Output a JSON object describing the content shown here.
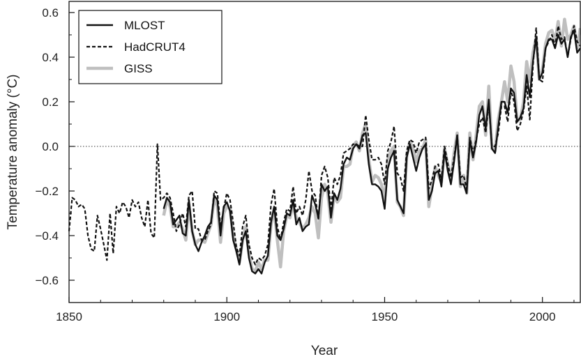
{
  "chart_data": {
    "type": "line",
    "xlabel": "Year",
    "ylabel": "Temperature anomaly (°C)",
    "xlim": [
      1850,
      2012
    ],
    "ylim": [
      -0.7,
      0.65
    ],
    "x_ticks": [
      1850,
      1900,
      1950,
      2000
    ],
    "y_ticks": [
      -0.6,
      -0.4,
      -0.2,
      0.0,
      0.2,
      0.4,
      0.6
    ],
    "y_tick_labels": [
      "−0.6",
      "−0.4",
      "−0.2",
      "0.0",
      "0.2",
      "0.4",
      "0.6"
    ],
    "reference_line": {
      "y": 0.0,
      "style": "dotted"
    },
    "legend_position": "top-left",
    "series": [
      {
        "name": "MLOST",
        "style": "solid",
        "color": "#111111",
        "x": [
          1880,
          1881,
          1882,
          1883,
          1884,
          1885,
          1886,
          1887,
          1888,
          1889,
          1890,
          1891,
          1892,
          1893,
          1894,
          1895,
          1896,
          1897,
          1898,
          1899,
          1900,
          1901,
          1902,
          1903,
          1904,
          1905,
          1906,
          1907,
          1908,
          1909,
          1910,
          1911,
          1912,
          1913,
          1914,
          1915,
          1916,
          1917,
          1918,
          1919,
          1920,
          1921,
          1922,
          1923,
          1924,
          1925,
          1926,
          1927,
          1928,
          1929,
          1930,
          1931,
          1932,
          1933,
          1934,
          1935,
          1936,
          1937,
          1938,
          1939,
          1940,
          1941,
          1942,
          1943,
          1944,
          1945,
          1946,
          1947,
          1948,
          1949,
          1950,
          1951,
          1952,
          1953,
          1954,
          1955,
          1956,
          1957,
          1958,
          1959,
          1960,
          1961,
          1962,
          1963,
          1964,
          1965,
          1966,
          1967,
          1968,
          1969,
          1970,
          1971,
          1972,
          1973,
          1974,
          1975,
          1976,
          1977,
          1978,
          1979,
          1980,
          1981,
          1982,
          1983,
          1984,
          1985,
          1986,
          1987,
          1988,
          1989,
          1990,
          1991,
          1992,
          1993,
          1994,
          1995,
          1996,
          1997,
          1998,
          1999,
          2000,
          2001,
          2002,
          2003,
          2004,
          2005,
          2006,
          2007,
          2008,
          2009,
          2010,
          2011,
          2012
        ],
        "y": [
          -0.28,
          -0.23,
          -0.25,
          -0.35,
          -0.33,
          -0.31,
          -0.39,
          -0.4,
          -0.24,
          -0.38,
          -0.44,
          -0.47,
          -0.43,
          -0.4,
          -0.36,
          -0.34,
          -0.22,
          -0.24,
          -0.4,
          -0.27,
          -0.25,
          -0.29,
          -0.42,
          -0.47,
          -0.53,
          -0.42,
          -0.38,
          -0.5,
          -0.56,
          -0.57,
          -0.55,
          -0.57,
          -0.52,
          -0.49,
          -0.34,
          -0.27,
          -0.4,
          -0.42,
          -0.37,
          -0.3,
          -0.31,
          -0.24,
          -0.35,
          -0.32,
          -0.38,
          -0.36,
          -0.35,
          -0.22,
          -0.26,
          -0.32,
          -0.17,
          -0.2,
          -0.18,
          -0.32,
          -0.21,
          -0.24,
          -0.19,
          -0.08,
          -0.05,
          -0.06,
          -0.01,
          0.01,
          -0.01,
          0.05,
          0.06,
          -0.08,
          -0.17,
          -0.17,
          -0.18,
          -0.2,
          -0.28,
          -0.1,
          -0.05,
          -0.02,
          -0.24,
          -0.27,
          -0.3,
          -0.05,
          0.01,
          -0.05,
          -0.11,
          -0.05,
          -0.01,
          0.01,
          -0.24,
          -0.2,
          -0.12,
          -0.11,
          -0.18,
          -0.02,
          -0.11,
          -0.17,
          -0.07,
          0.05,
          -0.17,
          -0.17,
          -0.21,
          0.03,
          -0.05,
          0.02,
          0.14,
          0.18,
          0.08,
          0.21,
          -0.01,
          -0.03,
          0.09,
          0.2,
          0.2,
          0.15,
          0.26,
          0.24,
          0.11,
          0.13,
          0.17,
          0.32,
          0.22,
          0.38,
          0.49,
          0.3,
          0.33,
          0.44,
          0.48,
          0.48,
          0.44,
          0.5,
          0.46,
          0.48,
          0.4,
          0.49,
          0.52,
          0.42,
          0.44
        ]
      },
      {
        "name": "HadCRUT4",
        "style": "dashed",
        "color": "#111111",
        "x": [
          1850,
          1851,
          1852,
          1853,
          1854,
          1855,
          1856,
          1857,
          1858,
          1859,
          1860,
          1861,
          1862,
          1863,
          1864,
          1865,
          1866,
          1867,
          1868,
          1869,
          1870,
          1871,
          1872,
          1873,
          1874,
          1875,
          1876,
          1877,
          1878,
          1879,
          1880,
          1881,
          1882,
          1883,
          1884,
          1885,
          1886,
          1887,
          1888,
          1889,
          1890,
          1891,
          1892,
          1893,
          1894,
          1895,
          1896,
          1897,
          1898,
          1899,
          1900,
          1901,
          1902,
          1903,
          1904,
          1905,
          1906,
          1907,
          1908,
          1909,
          1910,
          1911,
          1912,
          1913,
          1914,
          1915,
          1916,
          1917,
          1918,
          1919,
          1920,
          1921,
          1922,
          1923,
          1924,
          1925,
          1926,
          1927,
          1928,
          1929,
          1930,
          1931,
          1932,
          1933,
          1934,
          1935,
          1936,
          1937,
          1938,
          1939,
          1940,
          1941,
          1942,
          1943,
          1944,
          1945,
          1946,
          1947,
          1948,
          1949,
          1950,
          1951,
          1952,
          1953,
          1954,
          1955,
          1956,
          1957,
          1958,
          1959,
          1960,
          1961,
          1962,
          1963,
          1964,
          1965,
          1966,
          1967,
          1968,
          1969,
          1970,
          1971,
          1972,
          1973,
          1974,
          1975,
          1976,
          1977,
          1978,
          1979,
          1980,
          1981,
          1982,
          1983,
          1984,
          1985,
          1986,
          1987,
          1988,
          1989,
          1990,
          1991,
          1992,
          1993,
          1994,
          1995,
          1996,
          1997,
          1998,
          1999,
          2000,
          2001,
          2002,
          2003,
          2004,
          2005,
          2006,
          2007,
          2008,
          2009,
          2010,
          2011,
          2012
        ],
        "y": [
          -0.38,
          -0.23,
          -0.24,
          -0.27,
          -0.26,
          -0.28,
          -0.4,
          -0.46,
          -0.47,
          -0.31,
          -0.37,
          -0.44,
          -0.51,
          -0.3,
          -0.48,
          -0.27,
          -0.3,
          -0.25,
          -0.27,
          -0.32,
          -0.24,
          -0.27,
          -0.25,
          -0.32,
          -0.36,
          -0.24,
          -0.39,
          -0.41,
          0.01,
          -0.24,
          -0.23,
          -0.21,
          -0.23,
          -0.3,
          -0.38,
          -0.35,
          -0.3,
          -0.36,
          -0.22,
          -0.2,
          -0.37,
          -0.37,
          -0.42,
          -0.42,
          -0.38,
          -0.35,
          -0.2,
          -0.21,
          -0.36,
          -0.28,
          -0.21,
          -0.24,
          -0.34,
          -0.45,
          -0.49,
          -0.36,
          -0.31,
          -0.44,
          -0.5,
          -0.53,
          -0.5,
          -0.51,
          -0.49,
          -0.44,
          -0.26,
          -0.19,
          -0.36,
          -0.42,
          -0.34,
          -0.28,
          -0.29,
          -0.18,
          -0.3,
          -0.27,
          -0.31,
          -0.24,
          -0.11,
          -0.2,
          -0.22,
          -0.33,
          -0.13,
          -0.09,
          -0.14,
          -0.28,
          -0.14,
          -0.17,
          -0.13,
          -0.03,
          -0.02,
          -0.01,
          0.01,
          0.01,
          0.0,
          0.0,
          0.14,
          0.03,
          -0.06,
          -0.06,
          -0.05,
          -0.08,
          -0.17,
          -0.02,
          0.02,
          0.09,
          -0.12,
          -0.14,
          -0.2,
          -0.02,
          0.03,
          0.02,
          -0.03,
          0.02,
          0.03,
          0.04,
          -0.19,
          -0.15,
          -0.09,
          -0.08,
          -0.15,
          0.0,
          -0.08,
          -0.14,
          -0.05,
          0.05,
          -0.14,
          -0.13,
          -0.19,
          0.04,
          -0.03,
          0.03,
          0.1,
          0.13,
          0.06,
          0.19,
          0.0,
          0.0,
          0.06,
          0.18,
          0.18,
          0.11,
          0.25,
          0.2,
          0.07,
          0.1,
          0.16,
          0.27,
          0.12,
          0.36,
          0.53,
          0.3,
          0.29,
          0.44,
          0.47,
          0.5,
          0.45,
          0.54,
          0.48,
          0.49,
          0.4,
          0.48,
          0.54,
          0.47,
          0.45
        ]
      },
      {
        "name": "GISS",
        "style": "solid-thick",
        "color": "#bfbfbf",
        "x": [
          1880,
          1881,
          1882,
          1883,
          1884,
          1885,
          1886,
          1887,
          1888,
          1889,
          1890,
          1891,
          1892,
          1893,
          1894,
          1895,
          1896,
          1897,
          1898,
          1899,
          1900,
          1901,
          1902,
          1903,
          1904,
          1905,
          1906,
          1907,
          1908,
          1909,
          1910,
          1911,
          1912,
          1913,
          1914,
          1915,
          1916,
          1917,
          1918,
          1919,
          1920,
          1921,
          1922,
          1923,
          1924,
          1925,
          1926,
          1927,
          1928,
          1929,
          1930,
          1931,
          1932,
          1933,
          1934,
          1935,
          1936,
          1937,
          1938,
          1939,
          1940,
          1941,
          1942,
          1943,
          1944,
          1945,
          1946,
          1947,
          1948,
          1949,
          1950,
          1951,
          1952,
          1953,
          1954,
          1955,
          1956,
          1957,
          1958,
          1959,
          1960,
          1961,
          1962,
          1963,
          1964,
          1965,
          1966,
          1967,
          1968,
          1969,
          1970,
          1971,
          1972,
          1973,
          1974,
          1975,
          1976,
          1977,
          1978,
          1979,
          1980,
          1981,
          1982,
          1983,
          1984,
          1985,
          1986,
          1987,
          1988,
          1989,
          1990,
          1991,
          1992,
          1993,
          1994,
          1995,
          1996,
          1997,
          1998,
          1999,
          2000,
          2001,
          2002,
          2003,
          2004,
          2005,
          2006,
          2007,
          2008,
          2009,
          2010,
          2011,
          2012
        ],
        "y": [
          -0.31,
          -0.24,
          -0.27,
          -0.36,
          -0.36,
          -0.34,
          -0.37,
          -0.42,
          -0.26,
          -0.38,
          -0.44,
          -0.42,
          -0.42,
          -0.43,
          -0.39,
          -0.35,
          -0.23,
          -0.27,
          -0.43,
          -0.3,
          -0.27,
          -0.28,
          -0.4,
          -0.46,
          -0.52,
          -0.42,
          -0.36,
          -0.48,
          -0.55,
          -0.56,
          -0.52,
          -0.55,
          -0.51,
          -0.51,
          -0.35,
          -0.28,
          -0.42,
          -0.54,
          -0.38,
          -0.31,
          -0.32,
          -0.26,
          -0.32,
          -0.34,
          -0.37,
          -0.35,
          -0.32,
          -0.27,
          -0.3,
          -0.41,
          -0.23,
          -0.17,
          -0.21,
          -0.34,
          -0.22,
          -0.25,
          -0.23,
          -0.09,
          -0.09,
          -0.08,
          0.0,
          0.02,
          -0.02,
          0.06,
          0.1,
          -0.06,
          -0.16,
          -0.13,
          -0.14,
          -0.17,
          -0.24,
          -0.06,
          -0.02,
          0.0,
          -0.25,
          -0.27,
          -0.31,
          -0.04,
          0.02,
          -0.01,
          -0.07,
          -0.02,
          -0.01,
          0.03,
          -0.27,
          -0.18,
          -0.09,
          -0.13,
          -0.16,
          -0.01,
          -0.08,
          -0.15,
          -0.03,
          0.06,
          -0.18,
          -0.13,
          -0.21,
          0.06,
          -0.06,
          0.05,
          0.18,
          0.2,
          0.05,
          0.27,
          -0.01,
          -0.02,
          0.12,
          0.2,
          0.29,
          0.2,
          0.36,
          0.29,
          0.12,
          0.12,
          0.2,
          0.38,
          0.29,
          0.42,
          0.49,
          0.3,
          0.34,
          0.46,
          0.51,
          0.52,
          0.47,
          0.56,
          0.45,
          0.57,
          0.48,
          0.5,
          0.54,
          0.44,
          0.53
        ]
      }
    ]
  }
}
